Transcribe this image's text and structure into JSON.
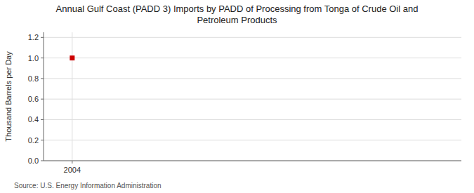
{
  "chart_data": {
    "type": "scatter",
    "title": "Annual Gulf Coast (PADD 3) Imports by PADD of Processing from Tonga of Crude Oil and\nPetroleum Products",
    "ylabel": "Thousand Barrels per Day",
    "source": "Source: U.S. Energy Information Administration",
    "x": [
      2004
    ],
    "values": [
      1.0
    ],
    "color": "#cc0000",
    "marker": "square",
    "xlim": [
      2003.3,
      2013.5
    ],
    "ylim": [
      0.0,
      1.25
    ],
    "xticks": [
      2004
    ],
    "yticks": [
      {
        "value": 0.0,
        "label": "0.0"
      },
      {
        "value": 0.2,
        "label": "0.2"
      },
      {
        "value": 0.4,
        "label": "0.4"
      },
      {
        "value": 0.6,
        "label": "0.6"
      },
      {
        "value": 0.8,
        "label": "0.8"
      },
      {
        "value": 1.0,
        "label": "1.0"
      },
      {
        "value": 1.2,
        "label": "1.2"
      }
    ],
    "grid": true
  }
}
